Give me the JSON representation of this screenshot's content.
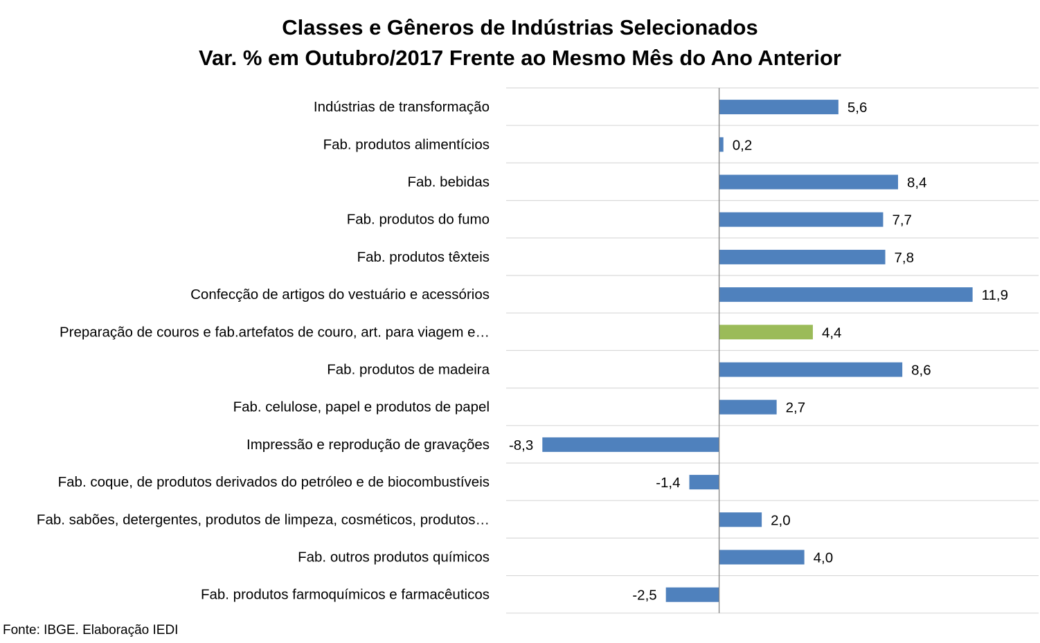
{
  "chart_data": {
    "type": "bar",
    "orientation": "horizontal",
    "title": "Classes e Gêneros de Indústrias Selecionados",
    "subtitle": "Var. % em Outubro/2017 Frente ao Mesmo Mês do Ano Anterior",
    "categories": [
      "Indústrias de transformação",
      "Fab. produtos alimentícios",
      "Fab. bebidas",
      "Fab. produtos do fumo",
      "Fab. produtos têxteis",
      "Confecção de artigos do vestuário e acessórios",
      "Preparação de couros e fab.artefatos de couro, art. para viagem e…",
      "Fab. produtos de madeira",
      "Fab. celulose, papel e produtos de papel",
      "Impressão e reprodução de gravações",
      "Fab. coque, de produtos derivados do petróleo e de biocombustíveis",
      "Fab. sabões, detergentes, produtos de limpeza, cosméticos, produtos…",
      "Fab. outros produtos químicos",
      "Fab. produtos farmoquímicos e farmacêuticos"
    ],
    "values": [
      5.6,
      0.2,
      8.4,
      7.7,
      7.8,
      11.9,
      4.4,
      8.6,
      2.7,
      -8.3,
      -1.4,
      2.0,
      4.0,
      -2.5
    ],
    "value_labels": [
      "5,6",
      "0,2",
      "8,4",
      "7,7",
      "7,8",
      "11,9",
      "4,4",
      "8,6",
      "2,7",
      "-8,3",
      "-1,4",
      "2,0",
      "4,0",
      "-2,5"
    ],
    "xlim": [
      -10.0,
      15.0
    ],
    "highlight_index": 6,
    "colors": {
      "bar": "#4F81BD",
      "highlight": "#9BBB59",
      "grid": "#D9D9D9",
      "axis": "#808080",
      "text": "#000000"
    },
    "grid": true,
    "legend": "none"
  },
  "source": "Fonte: IBGE. Elaboração IEDI"
}
